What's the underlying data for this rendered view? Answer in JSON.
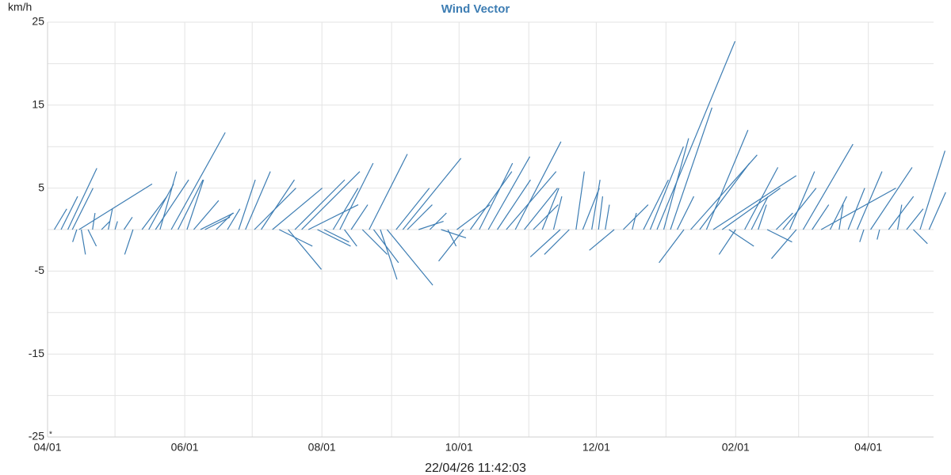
{
  "chart_data": {
    "type": "vector",
    "title": "Wind Vector",
    "ylabel": "km/h",
    "footer": "22/04/26 11:42:03",
    "annotation": "*",
    "color": "#3d7db3",
    "xlim": [
      0,
      394
    ],
    "xticks": [
      {
        "value": 0,
        "label": "04/01"
      },
      {
        "value": 61,
        "label": "06/01"
      },
      {
        "value": 122,
        "label": "08/01"
      },
      {
        "value": 183,
        "label": "10/01"
      },
      {
        "value": 244,
        "label": "12/01"
      },
      {
        "value": 306,
        "label": "02/01"
      },
      {
        "value": 365,
        "label": "04/01"
      }
    ],
    "xminor": [
      30,
      91,
      153,
      214,
      275,
      334
    ],
    "ylim": [
      -25,
      25
    ],
    "yticks": [
      25,
      15,
      5,
      -5,
      -15,
      -25
    ],
    "yminor": [
      20,
      10,
      0,
      -10,
      -20
    ],
    "grid": true,
    "x": [
      3,
      6,
      9,
      11,
      13,
      14,
      15,
      18,
      20,
      24,
      27,
      30,
      34,
      38,
      42,
      45,
      48,
      50,
      55,
      58,
      62,
      65,
      68,
      70,
      75,
      80,
      85,
      88,
      92,
      95,
      100,
      103,
      107,
      110,
      113,
      116,
      120,
      123,
      127,
      130,
      132,
      135,
      140,
      143,
      145,
      148,
      151,
      155,
      158,
      160,
      165,
      170,
      175,
      178,
      182,
      185,
      188,
      192,
      196,
      200,
      204,
      208,
      212,
      216,
      220,
      225,
      228,
      232,
      235,
      238,
      242,
      245,
      248,
      252,
      256,
      260,
      265,
      268,
      271,
      274,
      277,
      280,
      283,
      286,
      290,
      293,
      296,
      300,
      303,
      306,
      310,
      313,
      316,
      320,
      324,
      327,
      330,
      333,
      336,
      340,
      344,
      348,
      352,
      356,
      360,
      363,
      366,
      370,
      374,
      378,
      382,
      385,
      388,
      392
    ],
    "u": [
      1.5,
      2,
      3.5,
      2.5,
      -0.5,
      8.8,
      0.5,
      1,
      0.3,
      1,
      0.5,
      0.3,
      1,
      -1,
      3,
      3,
      4,
      2,
      6.5,
      3,
      2,
      3,
      4,
      3,
      2,
      1.5,
      2,
      3,
      5,
      4,
      6,
      4,
      4,
      6,
      7,
      6,
      4,
      3,
      3,
      4,
      1.5,
      2,
      3,
      4.6,
      3,
      2,
      5.5,
      4,
      7,
      3,
      3,
      2,
      3,
      1,
      4,
      -3,
      5,
      4,
      5,
      4,
      6,
      5.5,
      4,
      3,
      2,
      1,
      -3.6,
      -3,
      1,
      2,
      1,
      0.5,
      0.5,
      -3,
      3,
      0.5,
      3,
      4,
      9.4,
      3,
      5,
      2,
      -3,
      8,
      6,
      5,
      10,
      7,
      3,
      -2,
      4,
      2,
      1,
      3,
      2,
      4,
      3,
      -3,
      6,
      2,
      9,
      2,
      0.5,
      2,
      3,
      -0.5,
      5,
      -0.3,
      3,
      0.5,
      2,
      1.7,
      3,
      2
    ],
    "v": [
      2.5,
      4,
      7.4,
      5,
      -1.5,
      5.5,
      -3,
      -2,
      2,
      1,
      2.5,
      1,
      1.5,
      -3,
      4,
      5.5,
      6,
      7,
      11.7,
      6,
      6,
      3.5,
      2,
      1.5,
      2,
      2.5,
      6,
      7,
      5,
      6,
      5,
      -2,
      -4.8,
      6,
      7,
      3,
      -2,
      -1.5,
      5,
      8,
      -2,
      3,
      -3,
      9.1,
      -4,
      -6,
      -6.7,
      5,
      8.6,
      3,
      1,
      2,
      -1,
      -2,
      3,
      -3.8,
      7,
      8,
      8.8,
      6,
      7,
      10.6,
      5,
      3,
      5,
      4,
      -3.3,
      -3,
      7,
      5,
      6,
      4,
      3,
      -2.5,
      3,
      2,
      6,
      10,
      22.7,
      11,
      14.7,
      4,
      -4,
      9,
      8,
      12,
      6.5,
      5,
      -2,
      -3,
      7.5,
      4,
      3,
      -1.5,
      2,
      5,
      7,
      -3.5,
      10.3,
      3,
      5,
      4,
      3,
      5,
      7,
      -1.5,
      7.5,
      -1.2,
      4,
      3,
      2.5,
      -1.7,
      9.5,
      4.5
    ]
  }
}
